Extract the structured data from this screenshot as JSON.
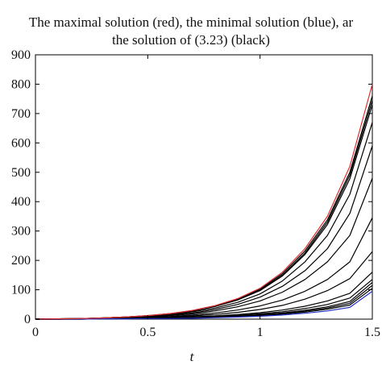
{
  "chart_data": {
    "type": "line",
    "title_lines": [
      "The maximal solution (red), the minimal solution (blue), ar",
      "the solution of (3.23) (black)"
    ],
    "xlabel": "t",
    "ylabel": "",
    "xlim": [
      0,
      1.5
    ],
    "ylim": [
      0,
      900
    ],
    "x_ticks": [
      "0",
      "0.5",
      "1",
      "1.5"
    ],
    "y_ticks": [
      "0",
      "100",
      "200",
      "300",
      "400",
      "500",
      "600",
      "700",
      "800",
      "900"
    ],
    "grid": false,
    "x": [
      0,
      0.1,
      0.2,
      0.3,
      0.4,
      0.5,
      0.6,
      0.7,
      0.8,
      0.9,
      1.0,
      1.1,
      1.2,
      1.3,
      1.4,
      1.5
    ],
    "series": [
      {
        "color": "#e03030",
        "values": [
          0,
          1,
          2,
          4,
          7,
          12,
          19,
          30,
          46,
          70,
          105,
          160,
          240,
          350,
          520,
          800
        ]
      },
      {
        "color": "#000000",
        "values": [
          0,
          1,
          2,
          4,
          7,
          12,
          19,
          29,
          45,
          68,
          102,
          155,
          232,
          338,
          500,
          760
        ]
      },
      {
        "color": "#000000",
        "values": [
          0,
          1,
          2,
          4,
          7,
          11,
          18,
          28,
          44,
          66,
          99,
          150,
          225,
          330,
          490,
          745
        ]
      },
      {
        "color": "#000000",
        "values": [
          0,
          1,
          2,
          4,
          7,
          11,
          18,
          28,
          43,
          65,
          97,
          147,
          220,
          322,
          478,
          730
        ]
      },
      {
        "color": "#000000",
        "values": [
          0,
          1,
          2,
          3,
          6,
          10,
          16,
          25,
          38,
          57,
          86,
          130,
          195,
          285,
          425,
          670
        ]
      },
      {
        "color": "#000000",
        "values": [
          0,
          1,
          2,
          3,
          5,
          9,
          14,
          21,
          33,
          50,
          75,
          112,
          165,
          240,
          360,
          590
        ]
      },
      {
        "color": "#000000",
        "values": [
          0,
          1,
          1,
          3,
          5,
          8,
          12,
          18,
          28,
          42,
          62,
          92,
          135,
          195,
          285,
          480
        ]
      },
      {
        "color": "#000000",
        "values": [
          0,
          0,
          1,
          2,
          4,
          6,
          9,
          14,
          21,
          31,
          45,
          65,
          95,
          135,
          195,
          345
        ]
      },
      {
        "color": "#000000",
        "values": [
          0,
          0,
          1,
          2,
          3,
          5,
          7,
          11,
          16,
          23,
          33,
          47,
          68,
          97,
          138,
          230
        ]
      },
      {
        "color": "#000000",
        "values": [
          0,
          0,
          1,
          1,
          2,
          3,
          5,
          8,
          11,
          16,
          22,
          31,
          44,
          62,
          88,
          160
        ]
      },
      {
        "color": "#000000",
        "values": [
          0,
          0,
          1,
          1,
          2,
          3,
          4,
          6,
          9,
          13,
          18,
          25,
          36,
          50,
          72,
          135
        ]
      },
      {
        "color": "#000000",
        "values": [
          0,
          0,
          0,
          1,
          2,
          2,
          4,
          5,
          8,
          11,
          15,
          21,
          30,
          42,
          60,
          125
        ]
      },
      {
        "color": "#000000",
        "values": [
          0,
          0,
          0,
          1,
          1,
          2,
          3,
          5,
          7,
          10,
          14,
          19,
          27,
          38,
          54,
          115
        ]
      },
      {
        "color": "#000000",
        "values": [
          0,
          0,
          0,
          1,
          1,
          2,
          3,
          4,
          6,
          9,
          12,
          17,
          24,
          34,
          48,
          105
        ]
      },
      {
        "color": "#2030c0",
        "values": [
          0,
          0,
          0,
          1,
          1,
          2,
          2,
          3,
          5,
          7,
          10,
          14,
          20,
          28,
          40,
          95
        ]
      }
    ]
  }
}
